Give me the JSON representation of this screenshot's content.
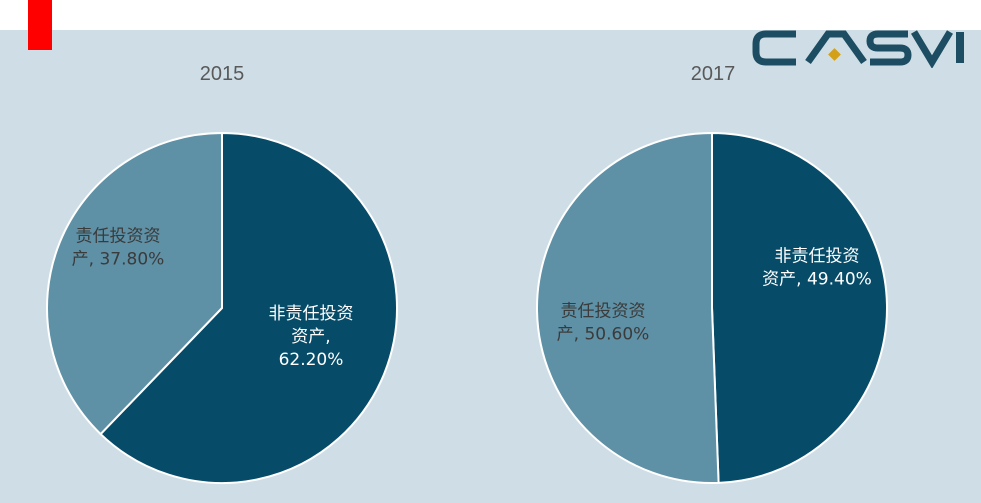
{
  "logo": {
    "text": "CASVI",
    "letters": [
      "C",
      "A",
      "S",
      "V",
      "I"
    ]
  },
  "colors": {
    "background": "#cfdee6",
    "dark_slice": "#064b68",
    "light_slice": "#5e90a6",
    "marker": "#ff0000",
    "logo": "#1c4d63",
    "logo_accent": "#d4a017"
  },
  "chart_data": [
    {
      "type": "pie",
      "title": "2015",
      "slices": [
        {
          "label": "非责任投资资产",
          "value": 62.2,
          "display": "62.20%",
          "color": "#064b68",
          "label_lines": [
            "非责任投资",
            "资产,",
            "62.20%"
          ],
          "text_color": "#ffffff"
        },
        {
          "label": "责任投资资产",
          "value": 37.8,
          "display": "37.80%",
          "color": "#5e90a6",
          "label_lines": [
            "责任投资资",
            "产, 37.80%"
          ],
          "text_color": "#3b3b3b"
        }
      ]
    },
    {
      "type": "pie",
      "title": "2017",
      "slices": [
        {
          "label": "非责任投资资产",
          "value": 49.4,
          "display": "49.40%",
          "color": "#064b68",
          "label_lines": [
            "非责任投资",
            "资产, 49.40%"
          ],
          "text_color": "#ffffff"
        },
        {
          "label": "责任投资资产",
          "value": 50.6,
          "display": "50.60%",
          "color": "#5e90a6",
          "label_lines": [
            "责任投资资",
            "产, 50.60%"
          ],
          "text_color": "#3b3b3b"
        }
      ]
    }
  ]
}
